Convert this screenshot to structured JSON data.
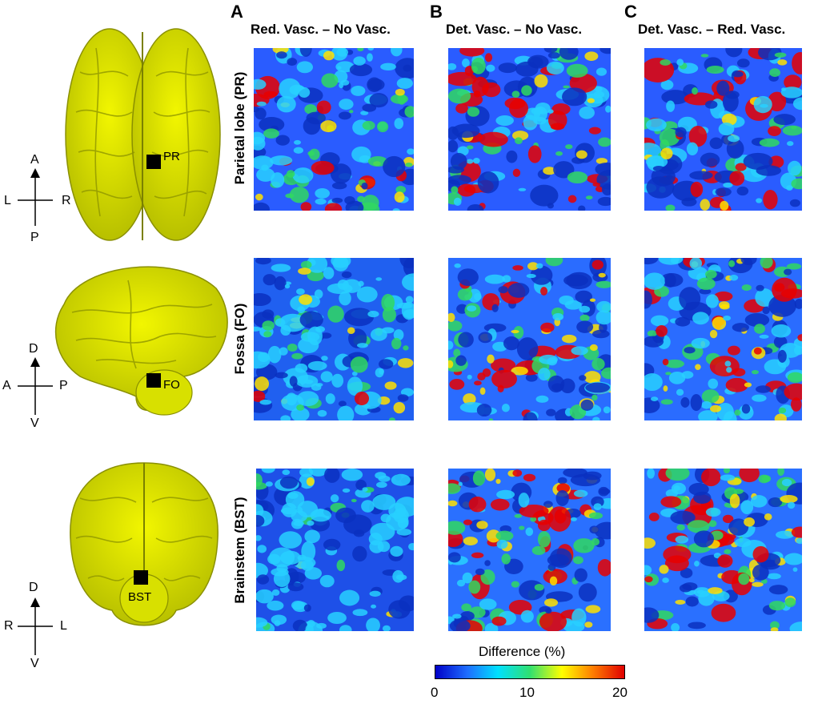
{
  "columns": [
    {
      "letter": "A",
      "title": "Red. Vasc. – No Vasc."
    },
    {
      "letter": "B",
      "title": "Det. Vasc. – No Vasc."
    },
    {
      "letter": "C",
      "title": "Det. Vasc. – Red. Vasc."
    }
  ],
  "rows": [
    {
      "label": "Parietal lobe (PR)",
      "marker": "PR",
      "compass": {
        "up": "A",
        "down": "P",
        "left": "L",
        "right": "R"
      }
    },
    {
      "label": "Fossa (FO)",
      "marker": "FO",
      "compass": {
        "up": "D",
        "down": "V",
        "left": "A",
        "right": "P"
      }
    },
    {
      "label": "Brainstem (BST)",
      "marker": "BST",
      "compass": {
        "up": "D",
        "down": "V",
        "left": "R",
        "right": "L"
      }
    }
  ],
  "colorbar": {
    "title": "Difference (%)",
    "ticks": [
      "0",
      "10",
      "20"
    ],
    "colors": [
      "#0000c8",
      "#1e6eff",
      "#00e0ff",
      "#30e070",
      "#ffff00",
      "#ff8000",
      "#e00000"
    ]
  },
  "brain_color": "#e8f000"
}
